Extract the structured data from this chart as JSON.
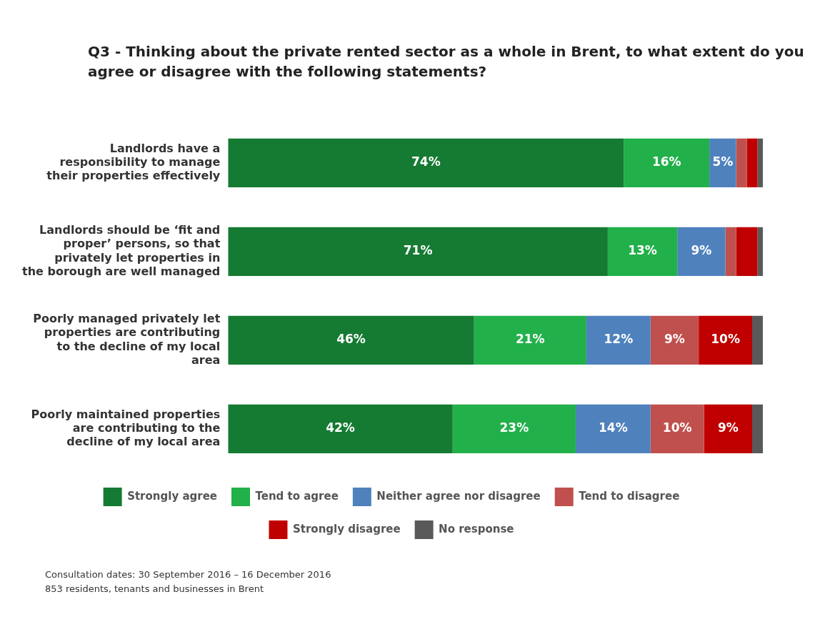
{
  "chart_data": {
    "type": "bar",
    "orientation": "horizontal",
    "stacked": true,
    "title": "Q3 - Thinking about the private rented sector as a whole in Brent, to what extent do you agree or disagree with the following statements?",
    "categories": [
      "Landlords have a responsibility to manage their properties effectively",
      "Landlords should be ‘fit and proper’ persons, so that privately let properties in the borough are well managed",
      "Poorly managed privately let properties are contributing to the decline of my local area",
      "Poorly maintained properties are contributing to the decline of my local area"
    ],
    "series": [
      {
        "name": "Strongly agree",
        "color": "#157a32",
        "values": [
          74,
          71,
          46,
          42
        ],
        "value_labels": [
          "74%",
          "71%",
          "46%",
          "42%"
        ]
      },
      {
        "name": "Tend to agree",
        "color": "#22b04b",
        "values": [
          16,
          13,
          21,
          23
        ],
        "value_labels": [
          "16%",
          "13%",
          "21%",
          "23%"
        ]
      },
      {
        "name": "Neither agree nor disagree",
        "color": "#4f81bd",
        "values": [
          5,
          9,
          12,
          14
        ],
        "value_labels": [
          "5%",
          "9%",
          "12%",
          "14%"
        ]
      },
      {
        "name": "Tend to disagree",
        "color": "#c0504d",
        "values": [
          2,
          2,
          9,
          10
        ],
        "value_labels": [
          null,
          null,
          "9%",
          "10%"
        ]
      },
      {
        "name": "Strongly disagree",
        "color": "#c00000",
        "values": [
          2,
          4,
          10,
          9
        ],
        "value_labels": [
          null,
          null,
          "10%",
          "9%"
        ]
      },
      {
        "name": "No response",
        "color": "#595959",
        "values": [
          1,
          1,
          2,
          2
        ],
        "value_labels": [
          null,
          null,
          null,
          null
        ]
      }
    ],
    "xlim": [
      0,
      100
    ],
    "tick_labels": "y",
    "legend": "bottom",
    "annotations": [
      "Consultation dates: 30 September 2016 – 16 December 2016",
      "853 residents, tenants and businesses in Brent"
    ]
  }
}
